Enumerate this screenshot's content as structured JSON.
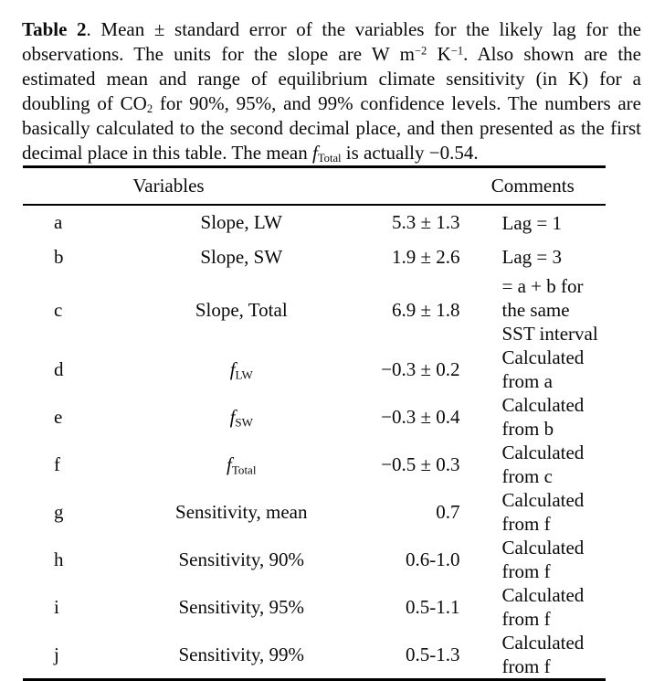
{
  "caption": {
    "label": "Table 2",
    "seg1": ". Mean ± standard error of the variables for the likely lag for the observations. The units for the slope are W m",
    "sup1": "−2",
    "seg2": " K",
    "sup2": "−1",
    "seg3": ". Also shown are the estimated mean and range of equilibrium climate sensitivity (in K) for a doubling of CO",
    "sub1": "2",
    "seg4": " for 90%, 95%, and 99% confidence levels. The numbers are basically calculated to the second decimal place, and then presented as the first decimal place in this table. The mean ",
    "fvar": "f",
    "fsub": "Total",
    "seg5": " is actually −0.54."
  },
  "table": {
    "headers": {
      "variables": "Variables",
      "comments": "Comments"
    },
    "rows": [
      {
        "letter": "a",
        "variable": "Slope, LW",
        "var_sub": "",
        "value": "5.3 ± 1.3",
        "comment": "Lag = 1"
      },
      {
        "letter": "b",
        "variable": "Slope, SW",
        "var_sub": "",
        "value": "1.9 ± 2.6",
        "comment": "Lag = 3"
      },
      {
        "letter": "c",
        "variable": "Slope, Total",
        "var_sub": "",
        "value": "6.9 ± 1.8",
        "comment": "= a + b for the same SST interval"
      },
      {
        "letter": "d",
        "variable": "f",
        "var_sub": "LW",
        "value": "−0.3 ± 0.2",
        "comment": "Calculated from a"
      },
      {
        "letter": "e",
        "variable": "f",
        "var_sub": "SW",
        "value": "−0.3 ± 0.4",
        "comment": "Calculated from b"
      },
      {
        "letter": "f",
        "variable": "f",
        "var_sub": "Total",
        "value": "−0.5 ± 0.3",
        "comment": "Calculated from c"
      },
      {
        "letter": "g",
        "variable": "Sensitivity, mean",
        "var_sub": "",
        "value": "0.7",
        "comment": "Calculated from f"
      },
      {
        "letter": "h",
        "variable": "Sensitivity, 90%",
        "var_sub": "",
        "value": "0.6-1.0",
        "comment": "Calculated from f"
      },
      {
        "letter": "i",
        "variable": "Sensitivity, 95%",
        "var_sub": "",
        "value": "0.5-1.1",
        "comment": "Calculated from f"
      },
      {
        "letter": "j",
        "variable": "Sensitivity, 99%",
        "var_sub": "",
        "value": "0.5-1.3",
        "comment": "Calculated from f"
      }
    ]
  }
}
